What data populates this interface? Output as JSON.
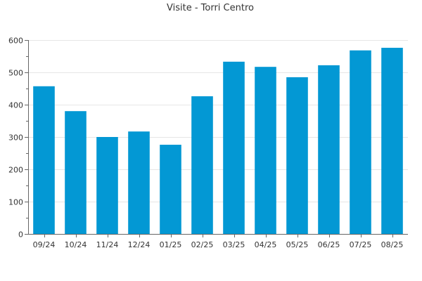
{
  "chart_data": {
    "type": "bar",
    "title": "Visite - Torri Centro",
    "xlabel": "",
    "ylabel": "",
    "categories": [
      "09/24",
      "10/24",
      "11/24",
      "12/24",
      "01/25",
      "02/25",
      "03/25",
      "04/25",
      "05/25",
      "06/25",
      "07/25",
      "08/25"
    ],
    "values": [
      457,
      380,
      300,
      317,
      276,
      426,
      533,
      517,
      485,
      522,
      568,
      576
    ],
    "ylim": [
      0,
      600
    ],
    "yticks": [
      0,
      100,
      200,
      300,
      400,
      500,
      600
    ],
    "grid": true,
    "legend": "none",
    "bar_color": "#0398d4"
  }
}
